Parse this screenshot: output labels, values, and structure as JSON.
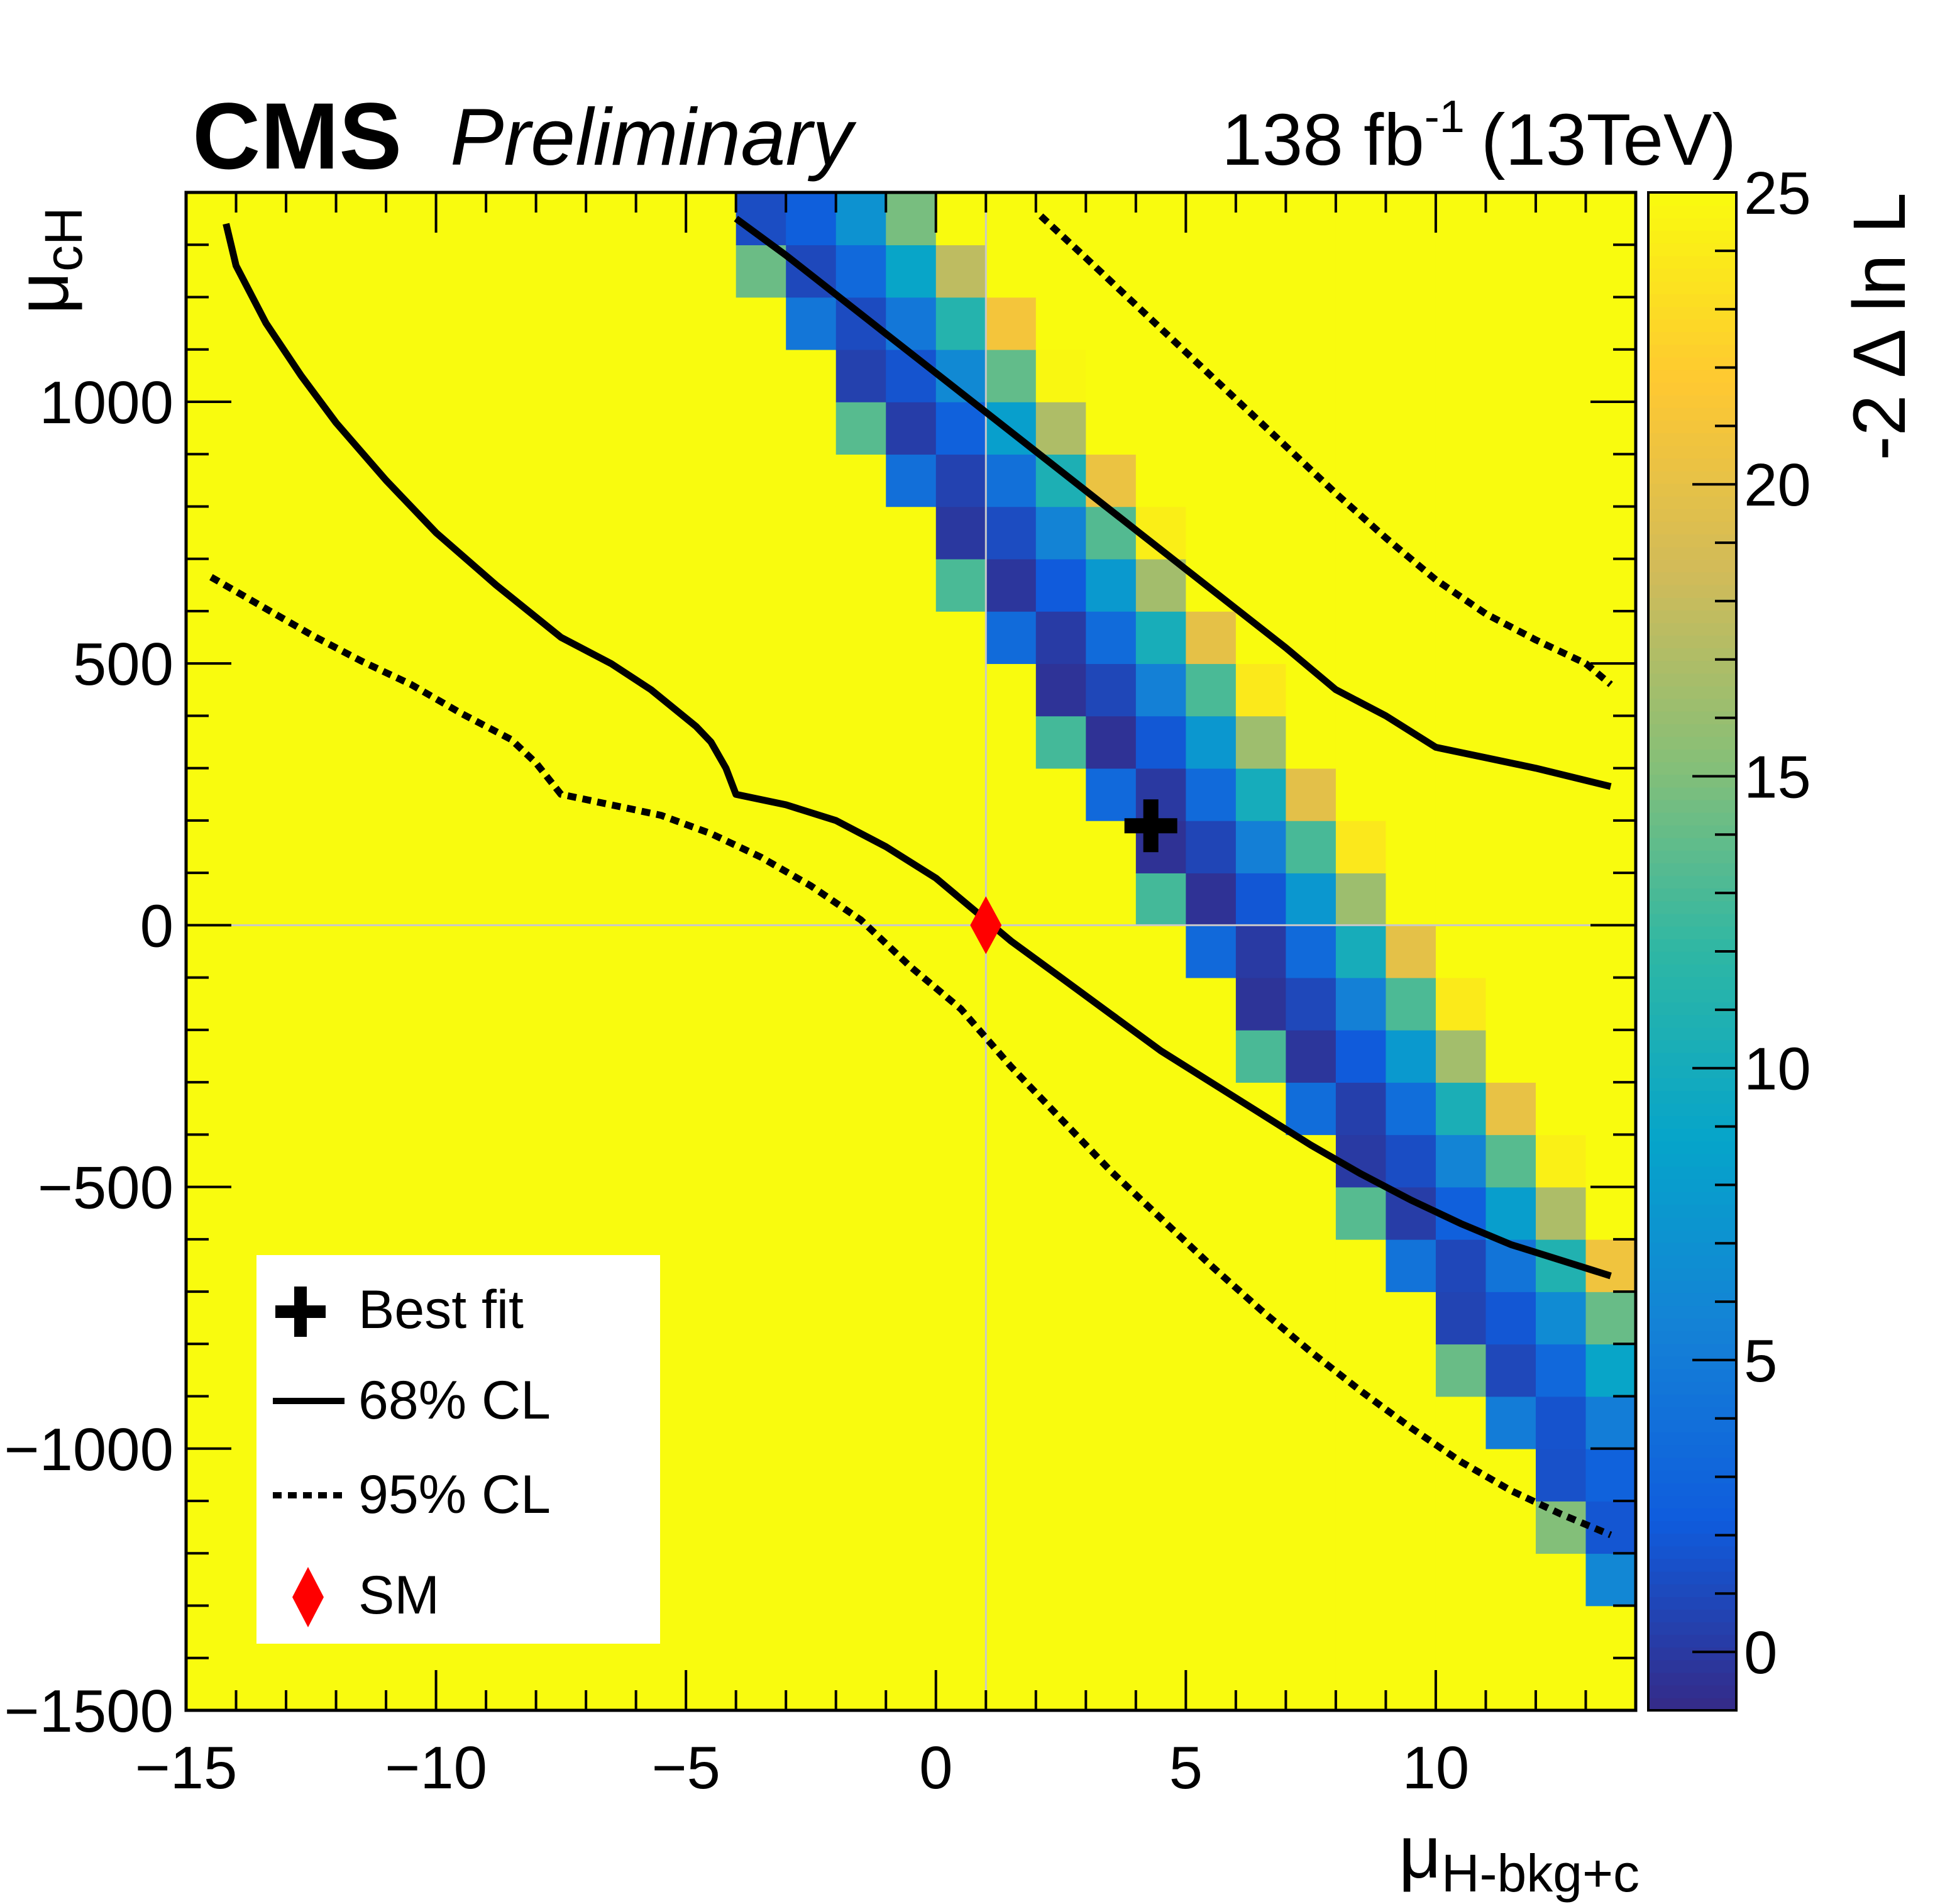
{
  "header": {
    "experiment": "CMS",
    "status": "Preliminary",
    "lumi_value": "138 fb",
    "lumi_exponent": "-1",
    "energy": "(13TeV)"
  },
  "colors": {
    "palette": [
      "#352a87",
      "#0f5cdd",
      "#1481d6",
      "#06a4ca",
      "#2eb7a4",
      "#87bf77",
      "#d1bb59",
      "#fec832",
      "#f9fb0e"
    ],
    "contour": "#000000",
    "sm_marker": "#ff0000",
    "reference_line": "#c8c8c8"
  },
  "chart_data": {
    "type": "heatmap",
    "title": "",
    "xlabel": "μ",
    "xlabel_sub": "H-bkg+c",
    "ylabel": "μ",
    "ylabel_sub": "cH",
    "zlabel": "-2 Δ ln L",
    "xlim": [
      -15,
      14
    ],
    "ylim": [
      -1500,
      1400
    ],
    "zlim": [
      -1,
      25
    ],
    "x_ticks": [
      -15,
      -10,
      -5,
      0,
      5,
      10
    ],
    "x_tick_labels": [
      "−15",
      "−10",
      "−5",
      "0",
      "5",
      "10"
    ],
    "y_ticks": [
      -1500,
      -1000,
      -500,
      0,
      500,
      1000
    ],
    "y_tick_labels": [
      "−1500",
      "−1000",
      "−500",
      "0",
      "500",
      "1000"
    ],
    "z_ticks": [
      0,
      5,
      10,
      15,
      20,
      25
    ],
    "z_tick_labels": [
      "0",
      "5",
      "10",
      "15",
      "20",
      "25"
    ],
    "grid": {
      "nx": 29,
      "ny": 29,
      "x_edges": [
        -15,
        14
      ],
      "y_edges": [
        -1500,
        1400
      ],
      "best_fit": [
        4.3,
        190
      ],
      "a_pos": 0.0105,
      "a_neg": 0.16,
      "b": 1.3e-06,
      "c": 3e-05,
      "tilt_ref": 1.0,
      "tilt_slope_pos": 0.7,
      "tilt_slope_neg": 0.8,
      "tilt_start": -1.0,
      "tilt_y_ref": -500
    },
    "series": [
      {
        "name": "68% CL lower",
        "style": "solid",
        "x": [
          -14.2,
          -14.0,
          -13.4,
          -12.7,
          -12.0,
          -11.0,
          -10.0,
          -8.8,
          -7.5,
          -6.5,
          -5.7,
          -4.8,
          -4.5,
          -4.2,
          -4.0,
          -3.0,
          -2.0,
          -1.0,
          0.0,
          0.5,
          1.0,
          1.5,
          2.5,
          3.5,
          4.5,
          5.5,
          6.5,
          7.5,
          8.5,
          9.5,
          10.5,
          11.5,
          12.5,
          13.5
        ],
        "y": [
          1340,
          1260,
          1150,
          1050,
          960,
          850,
          750,
          650,
          550,
          500,
          450,
          380,
          350,
          300,
          250,
          230,
          200,
          150,
          90,
          50,
          10,
          -30,
          -100,
          -170,
          -240,
          -300,
          -360,
          -420,
          -475,
          -525,
          -570,
          -610,
          -640,
          -670
        ]
      },
      {
        "name": "68% CL upper",
        "style": "solid",
        "x": [
          -4.0,
          -3.0,
          -2.0,
          -1.0,
          0.0,
          1.0,
          2.0,
          3.0,
          4.0,
          5.0,
          6.0,
          7.0,
          8.0,
          9.0,
          10.0,
          11.0,
          12.0,
          13.5
        ],
        "y": [
          1350,
          1280,
          1205,
          1130,
          1055,
          980,
          905,
          830,
          755,
          680,
          605,
          530,
          450,
          400,
          340,
          320,
          300,
          265
        ]
      },
      {
        "name": "95% CL lower",
        "style": "dashed",
        "x": [
          -14.5,
          -13.5,
          -12.5,
          -11.5,
          -10.5,
          -9.5,
          -8.5,
          -8.0,
          -7.5,
          -6.5,
          -5.5,
          -4.5,
          -3.5,
          -2.5,
          -1.5,
          -0.5,
          0.5,
          1.5,
          2.5,
          3.5,
          4.5,
          5.5,
          6.5,
          7.5,
          8.5,
          9.5,
          10.5,
          11.5,
          12.5,
          13.5
        ],
        "y": [
          665,
          610,
          555,
          505,
          460,
          405,
          355,
          310,
          250,
          230,
          210,
          175,
          130,
          75,
          10,
          -80,
          -160,
          -270,
          -370,
          -470,
          -560,
          -650,
          -735,
          -815,
          -890,
          -960,
          -1025,
          -1080,
          -1125,
          -1165
        ]
      },
      {
        "name": "95% CL upper",
        "style": "dashed",
        "x": [
          2.1,
          3.0,
          4.0,
          5.0,
          6.0,
          7.0,
          8.0,
          9.0,
          10.0,
          11.0,
          12.0,
          13.0,
          13.5
        ],
        "y": [
          1355,
          1275,
          1185,
          1095,
          1005,
          915,
          825,
          740,
          660,
          595,
          545,
          500,
          460
        ]
      }
    ],
    "markers": {
      "best_fit": {
        "name": "Best fit",
        "x": 4.3,
        "y": 190
      },
      "sm": {
        "name": "SM",
        "x": 1.0,
        "y": 0.0
      }
    },
    "legend": {
      "position": "bottom-left",
      "entries": [
        {
          "label": "Best fit",
          "symbol": "cross"
        },
        {
          "label": "68% CL",
          "symbol": "solid-line"
        },
        {
          "label": "95% CL",
          "symbol": "dashed-line"
        },
        {
          "label": "SM",
          "symbol": "diamond"
        }
      ]
    }
  }
}
